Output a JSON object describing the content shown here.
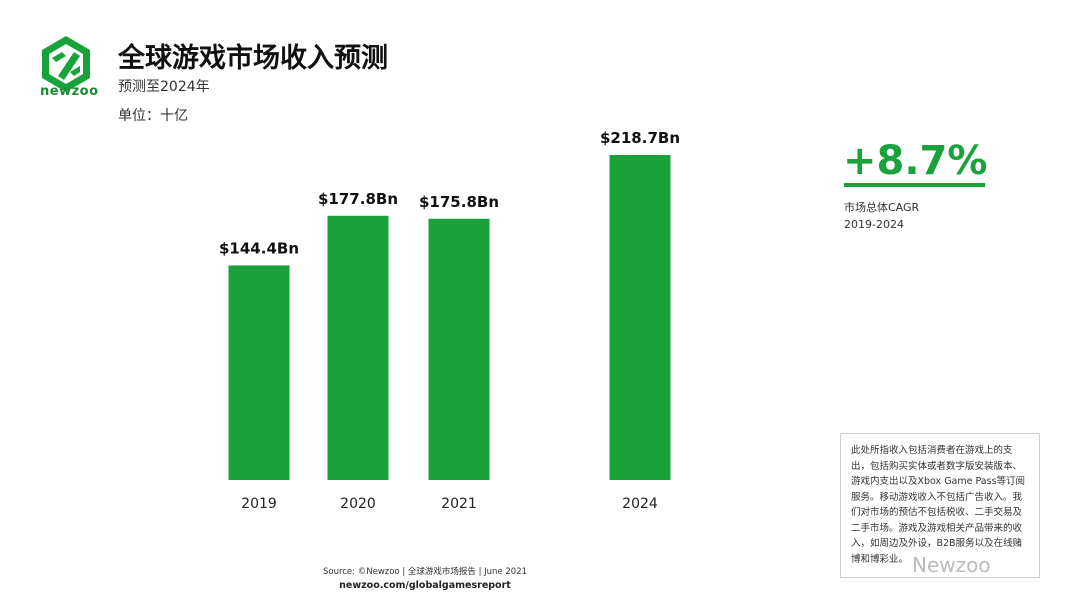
{
  "brand": {
    "logo_text": "newzoo",
    "color": "#1aa23a"
  },
  "header": {
    "title": "全球游戏市场收入预测",
    "subtitle": "预测至2024年",
    "unit": "单位：十亿"
  },
  "chart_data": {
    "type": "bar",
    "categories": [
      "2019",
      "2020",
      "2021",
      "2024"
    ],
    "values": [
      144.4,
      177.8,
      175.8,
      218.7
    ],
    "data_labels": [
      "$144.4Bn",
      "$177.8Bn",
      "$175.8Bn",
      "$218.7Bn"
    ],
    "bar_color": "#1aa23a",
    "grid": false,
    "ylim": [
      0,
      218.7
    ]
  },
  "cagr": {
    "value": "+8.7%",
    "label": "市场总体CAGR",
    "period": "2019-2024"
  },
  "note": "此处所指收入包括消费者在游戏上的支出，包括购买实体或者数字版安装版本、游戏内支出以及Xbox Game Pass等订阅服务。移动游戏收入不包括广告收入。我们对市场的预估不包括税收、二手交易及二手市场。游戏及游戏相关产品带来的收入，如周边及外设，B2B服务以及在线赌博和博彩业。",
  "footer": {
    "source": "Source: ©Newzoo | 全球游戏市场报告 | June 2021",
    "site": "newzoo.com/globalgamesreport"
  },
  "watermark": "Newzoo"
}
